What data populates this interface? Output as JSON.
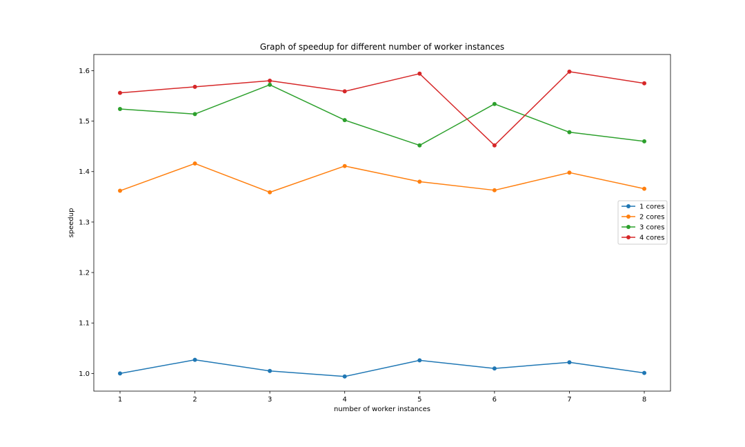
{
  "chart_data": {
    "type": "line",
    "title": "Graph of speedup for different number of worker instances",
    "xlabel": "number of worker instances",
    "ylabel": "speedup",
    "x": [
      1,
      2,
      3,
      4,
      5,
      6,
      7,
      8
    ],
    "xlim": [
      0.65,
      8.35
    ],
    "ylim": [
      0.965,
      1.632
    ],
    "xticks": [
      1,
      2,
      3,
      4,
      5,
      6,
      7,
      8
    ],
    "yticks": [
      1.0,
      1.1,
      1.2,
      1.3,
      1.4,
      1.5,
      1.6
    ],
    "ytick_labels": [
      "1.0",
      "1.1",
      "1.2",
      "1.3",
      "1.4",
      "1.5",
      "1.6"
    ],
    "grid": false,
    "legend_position": "center-right",
    "series": [
      {
        "name": "1 cores",
        "color": "#1f77b4",
        "values": [
          1.0,
          1.027,
          1.005,
          0.994,
          1.026,
          1.01,
          1.022,
          1.001
        ]
      },
      {
        "name": "2 cores",
        "color": "#ff7f0e",
        "values": [
          1.362,
          1.416,
          1.359,
          1.411,
          1.38,
          1.363,
          1.398,
          1.366
        ]
      },
      {
        "name": "3 cores",
        "color": "#2ca02c",
        "values": [
          1.524,
          1.514,
          1.572,
          1.502,
          1.452,
          1.534,
          1.478,
          1.46
        ]
      },
      {
        "name": "4 cores",
        "color": "#d62728",
        "values": [
          1.556,
          1.568,
          1.58,
          1.559,
          1.594,
          1.452,
          1.598,
          1.575
        ]
      }
    ]
  }
}
